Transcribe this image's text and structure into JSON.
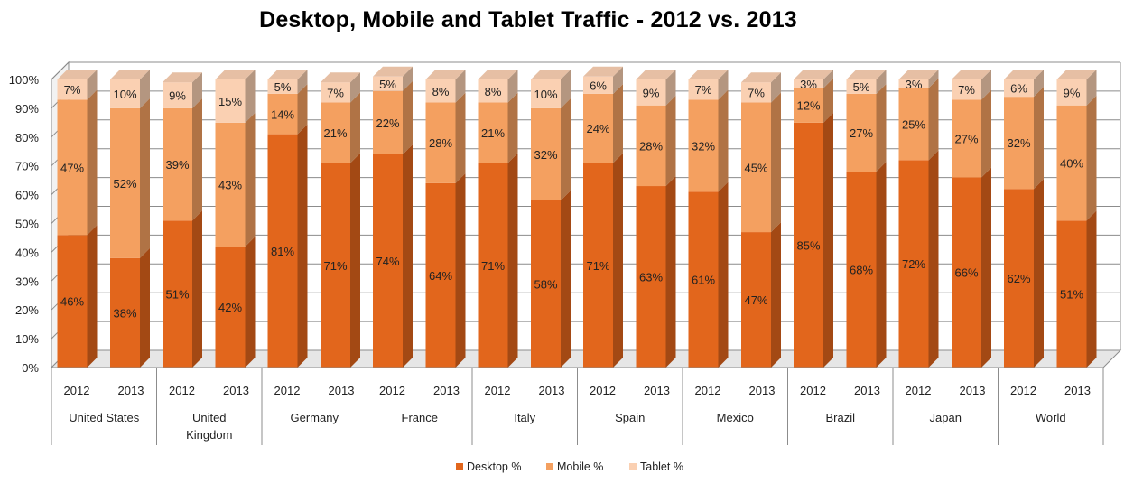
{
  "chart_data": {
    "type": "bar",
    "title": "Desktop, Mobile and Tablet Traffic - 2012 vs. 2013",
    "stacked": true,
    "percent": true,
    "ylim": [
      0,
      100
    ],
    "yticks": [
      "0%",
      "10%",
      "20%",
      "30%",
      "40%",
      "50%",
      "60%",
      "70%",
      "80%",
      "90%",
      "100%"
    ],
    "groups": [
      "United States",
      "United Kingdom",
      "Germany",
      "France",
      "Italy",
      "Spain",
      "Mexico",
      "Brazil",
      "Japan",
      "World"
    ],
    "group_label_lines": [
      [
        "United States"
      ],
      [
        "United",
        "Kingdom"
      ],
      [
        "Germany"
      ],
      [
        "France"
      ],
      [
        "Italy"
      ],
      [
        "Spain"
      ],
      [
        "Mexico"
      ],
      [
        "Brazil"
      ],
      [
        "Japan"
      ],
      [
        "World"
      ]
    ],
    "subcategories": [
      "2012",
      "2013"
    ],
    "series": [
      {
        "name": "Desktop %",
        "color": "#e2661c",
        "values": [
          46,
          38,
          51,
          42,
          81,
          71,
          74,
          64,
          71,
          58,
          71,
          63,
          61,
          47,
          85,
          68,
          72,
          66,
          62,
          51
        ],
        "labels": [
          "46%",
          "38%",
          "51%",
          "42%",
          "81%",
          "71%",
          "74%",
          "64%",
          "71%",
          "58%",
          "71%",
          "63%",
          "61%",
          "47%",
          "85%",
          "68%",
          "72%",
          "66%",
          "62%",
          "51%"
        ]
      },
      {
        "name": "Mobile %",
        "color": "#f4a060",
        "values": [
          47,
          52,
          39,
          43,
          14,
          21,
          22,
          28,
          21,
          32,
          24,
          28,
          32,
          45,
          12,
          27,
          25,
          27,
          32,
          40
        ],
        "labels": [
          "47%",
          "52%",
          "39%",
          "43%",
          "14%",
          "21%",
          "22%",
          "28%",
          "21%",
          "32%",
          "24%",
          "28%",
          "32%",
          "45%",
          "12%",
          "27%",
          "25%",
          "27%",
          "32%",
          "40%"
        ]
      },
      {
        "name": "Tablet %",
        "color": "#fad0b2",
        "values": [
          7,
          10,
          9,
          15,
          5,
          7,
          5,
          8,
          8,
          10,
          6,
          9,
          7,
          7,
          3,
          5,
          3,
          7,
          6,
          9
        ],
        "labels": [
          "7%",
          "10%",
          "9%",
          "15%",
          "5%",
          "7%",
          "5%",
          "8%",
          "8%",
          "10%",
          "6%",
          "9%",
          "7%",
          "7%",
          "3%",
          "5%",
          "3%",
          "7%",
          "6%",
          "9%"
        ]
      }
    ],
    "grid": true,
    "legend_position": "bottom"
  }
}
